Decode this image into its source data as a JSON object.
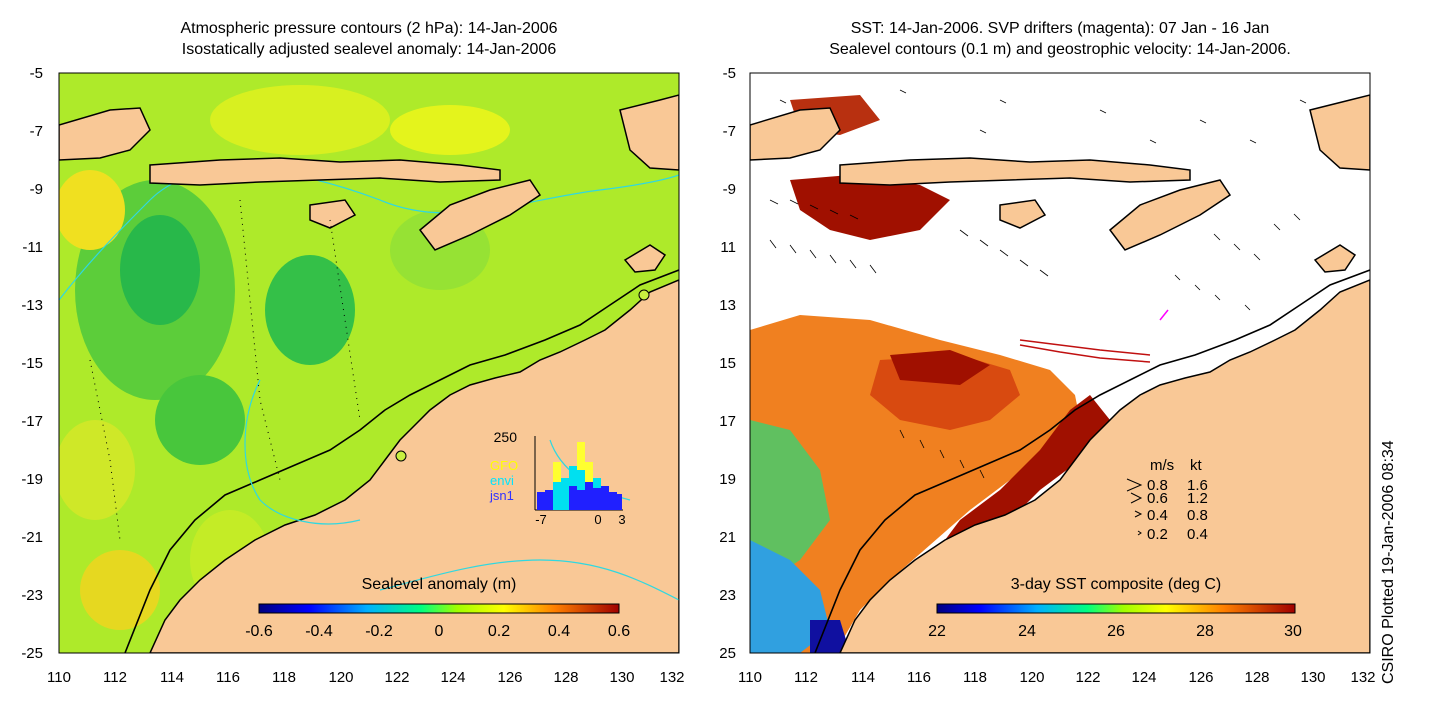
{
  "left_panel": {
    "title_line1": "Atmospheric pressure contours (2 hPa): 14-Jan-2006",
    "title_line2": "Isostatically adjusted sealevel anomaly: 14-Jan-2006",
    "colorbar_label": "Sealevel anomaly (m)",
    "colorbar_ticks": [
      "-0.6",
      "-0.4",
      "-0.2",
      "0",
      "0.2",
      "0.4",
      "0.6"
    ],
    "inset": {
      "ymax_label": "250",
      "legend": [
        {
          "label": "GFO",
          "color": "#ffff00"
        },
        {
          "label": "envi",
          "color": "#00e5ff"
        },
        {
          "label": "jsn1",
          "color": "#3333ff"
        }
      ],
      "x_ticks": [
        "-7",
        "0",
        "3"
      ]
    }
  },
  "right_panel": {
    "title_line1": "SST: 14-Jan-2006. SVP drifters (magenta): 07 Jan - 16 Jan",
    "title_line2": "Sealevel contours (0.1 m) and geostrophic velocity: 14-Jan-2006.",
    "colorbar_label": "3-day SST composite (deg C)",
    "colorbar_ticks": [
      "22",
      "24",
      "26",
      "28",
      "30"
    ],
    "velocity_key": {
      "header_ms": "m/s",
      "header_kt": "kt",
      "rows": [
        {
          "ms": "0.8",
          "kt": "1.6"
        },
        {
          "ms": "0.6",
          "kt": "1.2"
        },
        {
          "ms": "0.4",
          "kt": "0.8"
        },
        {
          "ms": "0.2",
          "kt": "0.4"
        }
      ]
    }
  },
  "axes": {
    "y_ticks": [
      "-5",
      "-7",
      "-9",
      "-11",
      "-13",
      "-15",
      "-17",
      "-19",
      "-21",
      "-23",
      "-25"
    ],
    "x_ticks": [
      "110",
      "112",
      "114",
      "116",
      "118",
      "120",
      "122",
      "124",
      "126",
      "128",
      "130",
      "132"
    ]
  },
  "credit": "CSIRO Plotted 19-Jan-2006 08:34",
  "colors": {
    "land": "#f9c896",
    "sea_green": "#88e23a",
    "sea_yellow": "#d4f21e",
    "sst_red": "#a01000",
    "sst_orange": "#f07a10"
  }
}
